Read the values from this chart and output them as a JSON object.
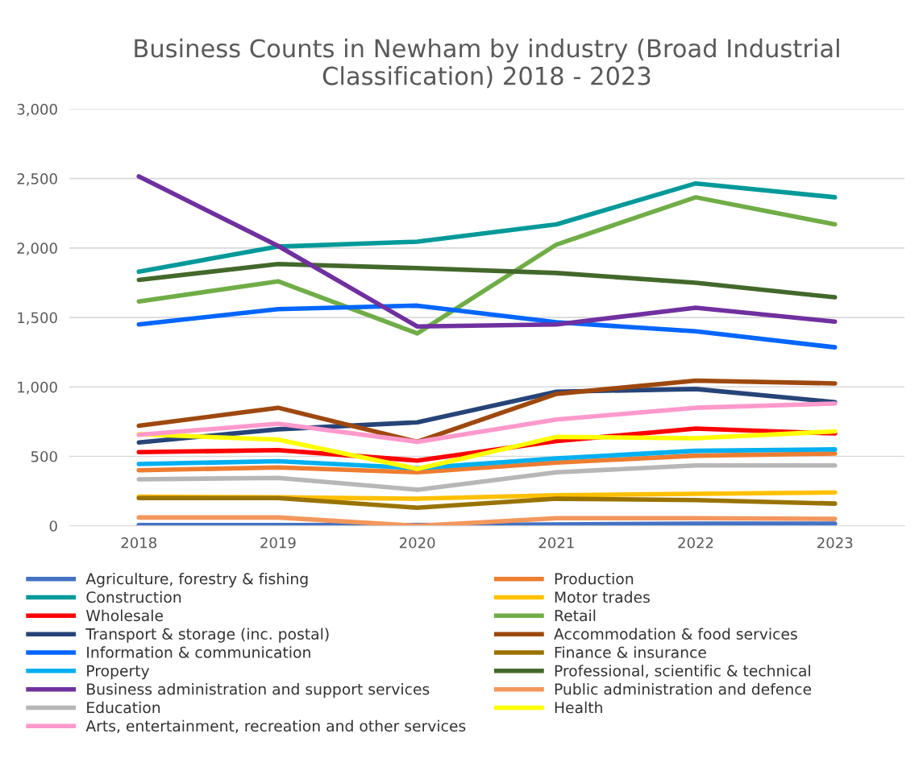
{
  "chart_data": {
    "type": "line",
    "title": "Business Counts in Newham by industry (Broad Industrial Classification) 2018 - 2023",
    "categories": [
      "2018",
      "2019",
      "2020",
      "2021",
      "2022",
      "2023"
    ],
    "ylim": [
      0,
      3000
    ],
    "yticks": [
      {
        "value": 0,
        "label": "0"
      },
      {
        "value": 500,
        "label": "500"
      },
      {
        "value": 1000,
        "label": "1,000"
      },
      {
        "value": 1500,
        "label": "1,500"
      },
      {
        "value": 2000,
        "label": "2,000"
      },
      {
        "value": 2500,
        "label": "2,500"
      },
      {
        "value": 3000,
        "label": "3,000"
      }
    ],
    "grid": "y",
    "legend": "bottom",
    "marker": "none",
    "line_style": "solid",
    "series": [
      {
        "name": "Agriculture, forestry & fishing",
        "color": "#4472c4",
        "values": [
          5,
          5,
          5,
          10,
          15,
          15
        ]
      },
      {
        "name": "Production",
        "color": "#ed7d31",
        "values": [
          400,
          420,
          385,
          455,
          505,
          520
        ]
      },
      {
        "name": "Construction",
        "color": "#009999",
        "values": [
          1830,
          2010,
          2045,
          2170,
          2465,
          2365
        ]
      },
      {
        "name": "Motor trades",
        "color": "#ffc000",
        "values": [
          210,
          205,
          195,
          220,
          230,
          240
        ]
      },
      {
        "name": "Wholesale",
        "color": "#ff0000",
        "values": [
          530,
          545,
          470,
          610,
          700,
          665
        ]
      },
      {
        "name": "Retail",
        "color": "#70ad47",
        "values": [
          1615,
          1760,
          1385,
          2025,
          2365,
          2170
        ]
      },
      {
        "name": "Transport & storage (inc. postal)",
        "color": "#264478",
        "values": [
          600,
          695,
          745,
          965,
          985,
          890
        ]
      },
      {
        "name": "Accommodation & food services",
        "color": "#9e480e",
        "values": [
          720,
          850,
          605,
          950,
          1045,
          1025
        ]
      },
      {
        "name": "Information & communication",
        "color": "#0066ff",
        "values": [
          1450,
          1560,
          1585,
          1465,
          1400,
          1285
        ]
      },
      {
        "name": "Finance & insurance",
        "color": "#997300",
        "values": [
          200,
          200,
          130,
          195,
          185,
          160
        ]
      },
      {
        "name": "Property",
        "color": "#00b0f0",
        "values": [
          445,
          465,
          415,
          485,
          540,
          550
        ]
      },
      {
        "name": "Professional, scientific & technical",
        "color": "#43682b",
        "values": [
          1770,
          1885,
          1855,
          1820,
          1750,
          1645
        ]
      },
      {
        "name": "Business administration and support services",
        "color": "#7030a0",
        "values": [
          2515,
          2015,
          1435,
          1450,
          1570,
          1470
        ]
      },
      {
        "name": "Public administration and defence",
        "color": "#f4975c",
        "values": [
          60,
          60,
          0,
          55,
          55,
          50
        ]
      },
      {
        "name": "Education",
        "color": "#b7b7b7",
        "values": [
          335,
          345,
          260,
          385,
          435,
          435
        ]
      },
      {
        "name": "Health",
        "color": "#ffff00",
        "values": [
          660,
          620,
          410,
          640,
          630,
          680
        ]
      },
      {
        "name": "Arts, entertainment, recreation and other services",
        "color": "#ff99cc",
        "values": [
          655,
          735,
          605,
          765,
          850,
          880
        ]
      }
    ]
  }
}
